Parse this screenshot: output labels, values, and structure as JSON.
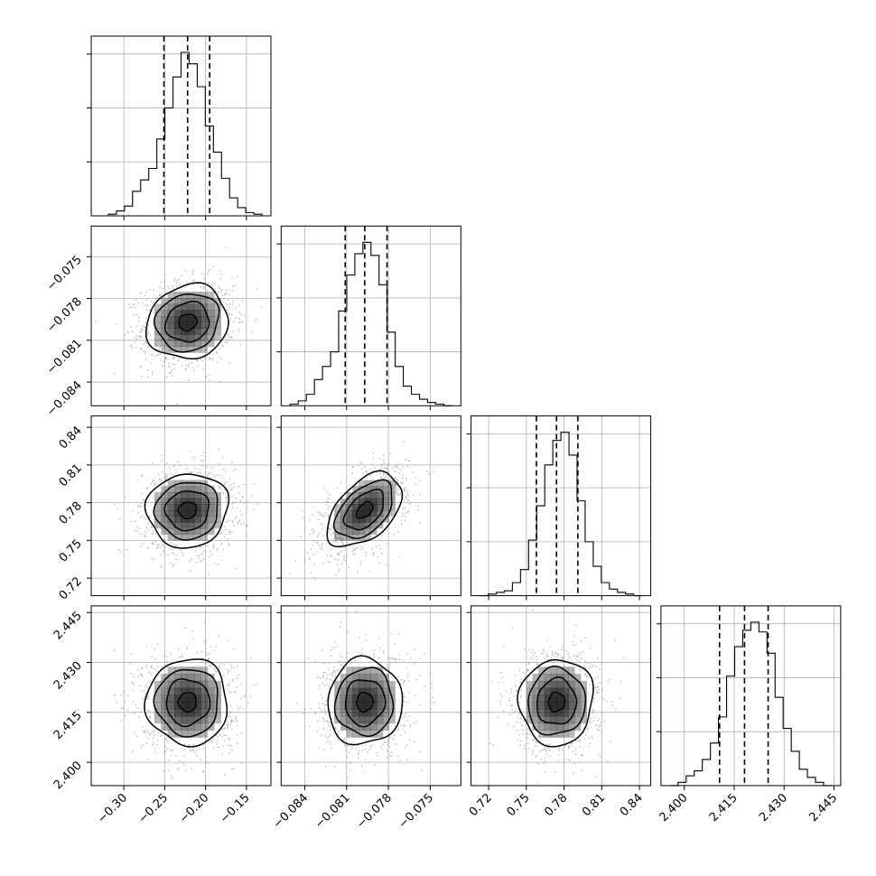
{
  "chart_data": {
    "type": "corner",
    "parameters": [
      {
        "ticks": [
          "−0.30",
          "−0.25",
          "−0.20",
          "−0.15"
        ],
        "tick_values": [
          -0.3,
          -0.25,
          -0.2,
          -0.15
        ],
        "range": [
          -0.34,
          -0.12
        ],
        "quantiles": [
          -0.251,
          -0.222,
          -0.195
        ],
        "hist": [
          0.0,
          0.01,
          0.03,
          0.06,
          0.15,
          0.22,
          0.29,
          0.47,
          0.66,
          0.85,
          1.0,
          0.93,
          0.79,
          0.55,
          0.39,
          0.23,
          0.11,
          0.05,
          0.02,
          0.01
        ]
      },
      {
        "ticks": [
          "−0.084",
          "−0.081",
          "−0.078",
          "−0.075"
        ],
        "tick_values": [
          -0.084,
          -0.081,
          -0.078,
          -0.075
        ],
        "range": [
          -0.0857,
          -0.0728
        ],
        "quantiles": [
          -0.0811,
          -0.0797,
          -0.0781
        ],
        "hist": [
          0.01,
          0.03,
          0.07,
          0.16,
          0.24,
          0.33,
          0.58,
          0.8,
          0.93,
          1.0,
          0.92,
          0.74,
          0.45,
          0.24,
          0.12,
          0.07,
          0.04,
          0.02,
          0.01,
          0.0
        ]
      },
      {
        "ticks": [
          "0.72",
          "0.75",
          "0.78",
          "0.81",
          "0.84"
        ],
        "tick_values": [
          0.72,
          0.75,
          0.78,
          0.81,
          0.84
        ],
        "range": [
          0.706,
          0.849
        ],
        "quantiles": [
          0.758,
          0.774,
          0.791
        ],
        "hist": [
          0.0,
          0.01,
          0.02,
          0.03,
          0.08,
          0.16,
          0.34,
          0.55,
          0.8,
          0.95,
          1.0,
          0.86,
          0.58,
          0.33,
          0.18,
          0.08,
          0.04,
          0.02,
          0.01,
          0.0
        ]
      },
      {
        "ticks": [
          "2.400",
          "2.415",
          "2.430",
          "2.445"
        ],
        "tick_values": [
          2.4,
          2.415,
          2.43,
          2.445
        ],
        "range": [
          2.393,
          2.447
        ],
        "quantiles": [
          2.4106,
          2.4181,
          2.4252
        ],
        "hist": [
          0.0,
          0.02,
          0.06,
          0.09,
          0.16,
          0.26,
          0.42,
          0.67,
          0.85,
          0.95,
          1.0,
          0.94,
          0.81,
          0.54,
          0.35,
          0.21,
          0.1,
          0.05,
          0.02,
          0.0
        ]
      }
    ],
    "correlations": [
      [
        1.0,
        0.1,
        0.05,
        0.0
      ],
      [
        0.1,
        1.0,
        0.48,
        0.03
      ],
      [
        0.05,
        0.48,
        1.0,
        0.04
      ],
      [
        0.0,
        0.03,
        0.04,
        1.0
      ]
    ],
    "contour_levels_sigma": [
      0.5,
      1.0,
      1.5,
      2.0
    ],
    "grid": true,
    "colors": {
      "contour": "#000000",
      "points": "#9a9a9a",
      "density": "#000000"
    }
  }
}
